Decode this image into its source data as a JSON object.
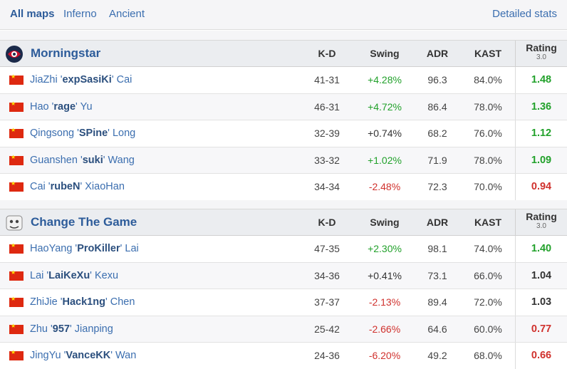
{
  "tabs": [
    {
      "label": "All maps",
      "active": true
    },
    {
      "label": "Inferno",
      "active": false
    },
    {
      "label": "Ancient",
      "active": false
    }
  ],
  "detailed_stats": "Detailed stats",
  "columns": {
    "kd": "K-D",
    "swing": "Swing",
    "adr": "ADR",
    "kast": "KAST",
    "rating": "Rating",
    "rating_ver": "3.0"
  },
  "colors": {
    "positive": "#22a12b",
    "negative": "#d0312d",
    "link": "#3b6eaf"
  },
  "teams": [
    {
      "name": "Morningstar",
      "logo_icon": "morningstar-logo-icon",
      "players": [
        {
          "first": "JiaZhi",
          "nick": "expSasiKi",
          "last": "Cai",
          "kd": "41-31",
          "swing": "+4.28%",
          "adr": "96.3",
          "kast": "84.0%",
          "rating": "1.48",
          "swing_class": "pos",
          "rating_class": "pos"
        },
        {
          "first": "Hao",
          "nick": "rage",
          "last": "Yu",
          "kd": "46-31",
          "swing": "+4.72%",
          "adr": "86.4",
          "kast": "78.0%",
          "rating": "1.36",
          "swing_class": "pos",
          "rating_class": "pos"
        },
        {
          "first": "Qingsong",
          "nick": "SPine",
          "last": "Long",
          "kd": "32-39",
          "swing": "+0.74%",
          "adr": "68.2",
          "kast": "76.0%",
          "rating": "1.12",
          "swing_class": "neu",
          "rating_class": "pos"
        },
        {
          "first": "Guanshen",
          "nick": "suki",
          "last": "Wang",
          "kd": "33-32",
          "swing": "+1.02%",
          "adr": "71.9",
          "kast": "78.0%",
          "rating": "1.09",
          "swing_class": "pos",
          "rating_class": "pos"
        },
        {
          "first": "Cai",
          "nick": "rubeN",
          "last": "XiaoHan",
          "kd": "34-34",
          "swing": "-2.48%",
          "adr": "72.3",
          "kast": "70.0%",
          "rating": "0.94",
          "swing_class": "neg",
          "rating_class": "neg"
        }
      ]
    },
    {
      "name": "Change The Game",
      "logo_icon": "change-the-game-logo-icon",
      "players": [
        {
          "first": "HaoYang",
          "nick": "ProKiller",
          "last": "Lai",
          "kd": "47-35",
          "swing": "+2.30%",
          "adr": "98.1",
          "kast": "74.0%",
          "rating": "1.40",
          "swing_class": "pos",
          "rating_class": "pos"
        },
        {
          "first": "Lai",
          "nick": "LaiKeXu",
          "last": "Kexu",
          "kd": "34-36",
          "swing": "+0.41%",
          "adr": "73.1",
          "kast": "66.0%",
          "rating": "1.04",
          "swing_class": "neu",
          "rating_class": "neu"
        },
        {
          "first": "ZhiJie",
          "nick": "Hack1ng",
          "last": "Chen",
          "kd": "37-37",
          "swing": "-2.13%",
          "adr": "89.4",
          "kast": "72.0%",
          "rating": "1.03",
          "swing_class": "neg",
          "rating_class": "neu"
        },
        {
          "first": "Zhu",
          "nick": "957",
          "last": "Jianping",
          "kd": "25-42",
          "swing": "-2.66%",
          "adr": "64.6",
          "kast": "60.0%",
          "rating": "0.77",
          "swing_class": "neg",
          "rating_class": "neg"
        },
        {
          "first": "JingYu",
          "nick": "VanceKK",
          "last": "Wan",
          "kd": "24-36",
          "swing": "-6.20%",
          "adr": "49.2",
          "kast": "68.0%",
          "rating": "0.66",
          "swing_class": "neg",
          "rating_class": "neg"
        }
      ]
    }
  ]
}
